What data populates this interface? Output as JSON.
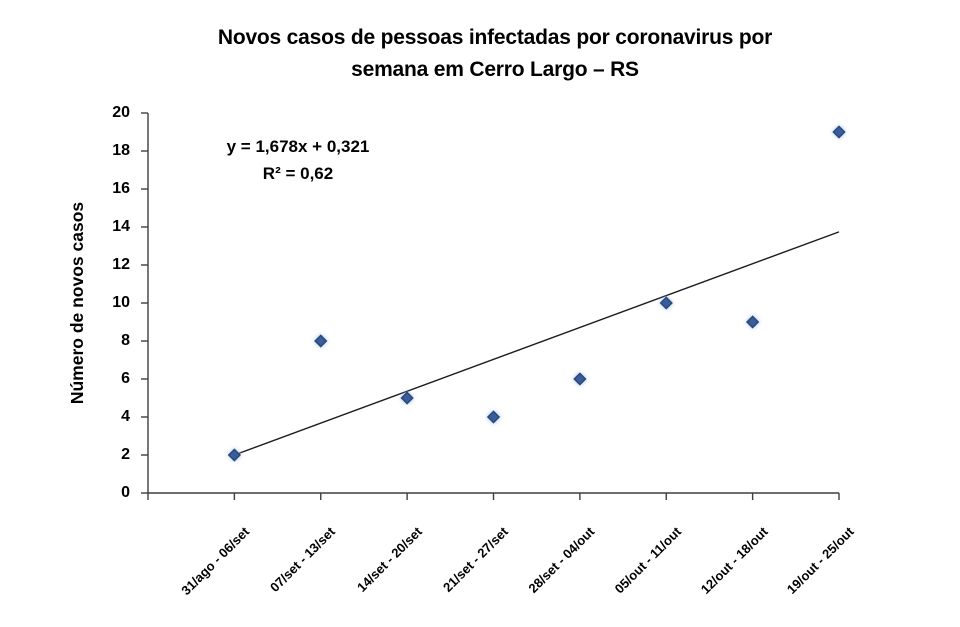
{
  "chart_data": {
    "type": "scatter",
    "title": "Novos casos de pessoas infectadas por coronavirus por semana em Cerro Largo – RS",
    "title_lines": [
      "Novos casos de pessoas infectadas por coronavirus por",
      "semana em Cerro Largo – RS"
    ],
    "ylabel": "Número de novos casos",
    "xlabel": "",
    "categories": [
      "31/ago - 06/set",
      "07/set - 13/set",
      "14/set - 20/set",
      "21/set - 27/set",
      "28/set - 04/out",
      "05/out - 11/out",
      "12/out - 18/out",
      "19/out - 25/out"
    ],
    "x": [
      1,
      2,
      3,
      4,
      5,
      6,
      7,
      8
    ],
    "values": [
      2,
      8,
      5,
      4,
      6,
      10,
      9,
      19
    ],
    "ylim": [
      0,
      20
    ],
    "ytick_step": 2,
    "xlim": [
      0,
      8
    ],
    "grid": false,
    "legend": "none",
    "trendline": {
      "slope": 1.678,
      "intercept": 0.321,
      "x_start": 1,
      "x_end": 8,
      "equation_label": "y = 1,678x + 0,321",
      "r2_label": "R² = 0,62"
    },
    "marker": {
      "shape": "diamond",
      "size": 5.6
    },
    "colors": {
      "marker_fill": "#3a5b99",
      "marker_stroke": "#27497c",
      "marker_glow": "#9db9de",
      "trendline": "#1c1c1c",
      "axis": "#3f3f3f",
      "text": "#000000"
    }
  }
}
